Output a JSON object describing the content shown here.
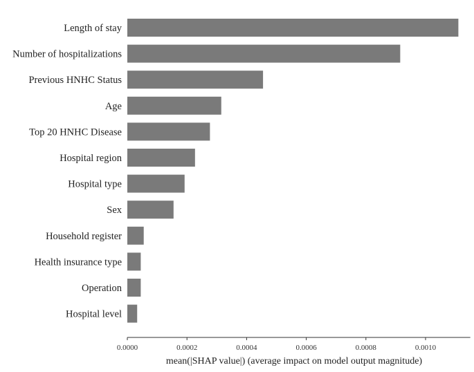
{
  "chart_data": {
    "type": "bar",
    "orientation": "horizontal",
    "categories": [
      "Length of stay",
      "Number of hospitalizations",
      "Previous HNHC Status",
      "Age",
      "Top 20 HNHC Disease",
      "Hospital region",
      "Hospital type",
      "Sex",
      "Household register",
      "Health insurance type",
      "Operation",
      "Hospital level"
    ],
    "values": [
      0.00111,
      0.000915,
      0.000455,
      0.000315,
      0.000277,
      0.000227,
      0.000192,
      0.000155,
      5.5e-05,
      4.5e-05,
      4.5e-05,
      3.3e-05
    ],
    "title": "",
    "xlabel": "mean(|SHAP value|) (average impact on model output magnitude)",
    "ylabel": "",
    "xlim": [
      0,
      0.00115
    ],
    "xticks": [
      0,
      0.0002,
      0.0004,
      0.0006,
      0.0008,
      0.001
    ],
    "xtick_labels": [
      "0.0000",
      "0.0002",
      "0.0004",
      "0.0006",
      "0.0008",
      "0.0010"
    ],
    "grid": false,
    "legend": "none",
    "bar_color": "#7a7a7a"
  }
}
